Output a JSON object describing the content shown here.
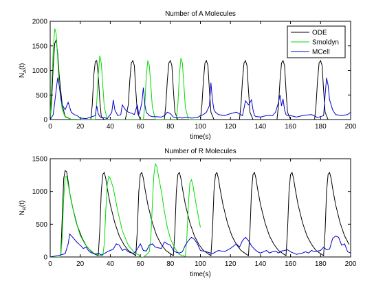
{
  "chart_data": [
    {
      "type": "line",
      "title": "Number of A Molecules",
      "xlabel": "time(s)",
      "ylabel_main": "N",
      "ylabel_sub": "A",
      "ylabel_tail": "(t)",
      "xlim": [
        0,
        200
      ],
      "ylim": [
        0,
        2000
      ],
      "xticks": [
        0,
        20,
        40,
        60,
        80,
        100,
        120,
        140,
        160,
        180,
        200
      ],
      "yticks": [
        0,
        500,
        1000,
        1500,
        2000
      ],
      "grid": false,
      "legend_position": "top-right",
      "legend": [
        "ODE",
        "Smoldyn",
        "MCell"
      ],
      "series": [
        {
          "name": "ODE",
          "color": "#000000",
          "x": [
            0,
            1,
            2,
            3,
            4,
            5,
            6,
            8,
            10,
            14,
            20,
            27,
            28,
            29,
            30,
            31,
            32,
            33,
            34,
            36,
            40,
            50,
            52,
            53,
            54,
            55,
            56,
            57,
            58,
            60,
            70,
            76,
            77,
            78,
            79,
            80,
            81,
            82,
            83,
            85,
            95,
            100,
            101,
            102,
            103,
            104,
            105,
            106,
            107,
            109,
            120,
            126,
            127,
            128,
            129,
            130,
            131,
            132,
            133,
            135,
            145,
            151,
            152,
            153,
            154,
            155,
            156,
            157,
            158,
            160,
            170,
            176,
            177,
            178,
            179,
            180,
            181,
            182,
            183,
            185,
            200
          ],
          "y": [
            0,
            400,
            1100,
            1550,
            1620,
            1350,
            900,
            300,
            60,
            5,
            0,
            0,
            300,
            900,
            1180,
            1200,
            900,
            400,
            60,
            0,
            0,
            0,
            300,
            800,
            1150,
            1200,
            1100,
            600,
            150,
            0,
            0,
            0,
            300,
            800,
            1150,
            1200,
            1100,
            600,
            150,
            0,
            0,
            0,
            300,
            800,
            1150,
            1200,
            1100,
            600,
            150,
            0,
            0,
            0,
            300,
            800,
            1150,
            1200,
            1100,
            600,
            150,
            0,
            0,
            0,
            300,
            800,
            1150,
            1200,
            1100,
            600,
            150,
            0,
            0,
            0,
            300,
            800,
            1150,
            1200,
            1100,
            600,
            150,
            0,
            0
          ]
        },
        {
          "name": "Smoldyn",
          "color": "#00dd00",
          "x": [
            0,
            1,
            2,
            3,
            4,
            5,
            6,
            8,
            10,
            14,
            20,
            30,
            31,
            32,
            33,
            34,
            35,
            36,
            38,
            50,
            62,
            63,
            64,
            65,
            66,
            67,
            68,
            70,
            84,
            85,
            86,
            87,
            88,
            89,
            90,
            92,
            100
          ],
          "y": [
            0,
            700,
            1400,
            1850,
            1750,
            1250,
            700,
            200,
            50,
            5,
            0,
            0,
            350,
            900,
            1300,
            1150,
            700,
            250,
            0,
            0,
            0,
            300,
            900,
            1200,
            1100,
            700,
            250,
            0,
            0,
            300,
            900,
            1250,
            1150,
            700,
            250,
            0,
            0
          ]
        },
        {
          "name": "MCell",
          "color": "#0000cc",
          "x": [
            0,
            2,
            3,
            4,
            5,
            6,
            7,
            8,
            10,
            12,
            14,
            16,
            18,
            20,
            24,
            28,
            30,
            31,
            32,
            33,
            34,
            36,
            38,
            40,
            41,
            42,
            43,
            45,
            47,
            48,
            50,
            52,
            54,
            56,
            58,
            59,
            60,
            61,
            62,
            63,
            64,
            66,
            68,
            70,
            74,
            76,
            78,
            80,
            82,
            84,
            86,
            88,
            90,
            94,
            98,
            100,
            102,
            104,
            106,
            107,
            108,
            109,
            110,
            112,
            116,
            120,
            124,
            128,
            130,
            132,
            134,
            135,
            136,
            137,
            138,
            140,
            144,
            148,
            150,
            152,
            153,
            154,
            155,
            156,
            157,
            158,
            160,
            164,
            168,
            170,
            174,
            178,
            180,
            182,
            183,
            184,
            185,
            186,
            188,
            190,
            194,
            198,
            200
          ],
          "y": [
            0,
            100,
            350,
            600,
            850,
            700,
            450,
            300,
            200,
            350,
            150,
            100,
            80,
            30,
            20,
            60,
            80,
            280,
            120,
            60,
            40,
            40,
            20,
            100,
            150,
            400,
            200,
            80,
            100,
            300,
            200,
            150,
            130,
            100,
            300,
            100,
            200,
            350,
            650,
            300,
            150,
            80,
            60,
            60,
            50,
            80,
            150,
            120,
            50,
            40,
            40,
            30,
            50,
            30,
            40,
            80,
            100,
            150,
            280,
            750,
            400,
            200,
            150,
            100,
            80,
            120,
            150,
            80,
            380,
            300,
            400,
            200,
            80,
            60,
            60,
            50,
            80,
            80,
            150,
            350,
            500,
            280,
            420,
            200,
            100,
            80,
            80,
            50,
            80,
            90,
            100,
            40,
            60,
            80,
            500,
            850,
            700,
            400,
            200,
            100,
            80,
            100,
            150
          ]
        }
      ]
    },
    {
      "type": "line",
      "title": "Number of R Molecules",
      "xlabel": "time(s)",
      "ylabel_main": "N",
      "ylabel_sub": "R",
      "ylabel_tail": "(t)",
      "xlim": [
        0,
        200
      ],
      "ylim": [
        0,
        1500
      ],
      "xticks": [
        0,
        20,
        40,
        60,
        80,
        100,
        120,
        140,
        160,
        180,
        200
      ],
      "yticks": [
        0,
        500,
        1000,
        1500
      ],
      "grid": false,
      "series": [
        {
          "name": "ODE",
          "color": "#000000",
          "x": [
            0,
            7,
            8,
            9,
            10,
            11,
            12,
            13,
            15,
            18,
            21,
            24,
            27,
            30,
            32,
            33,
            34,
            35,
            36,
            37,
            38,
            40,
            43,
            46,
            49,
            52,
            55,
            57,
            58,
            59,
            60,
            61,
            62,
            63,
            65,
            68,
            71,
            74,
            77,
            80,
            82,
            83,
            84,
            85,
            86,
            87,
            88,
            90,
            93,
            96,
            99,
            102,
            105,
            107,
            108,
            109,
            110,
            111,
            112,
            113,
            115,
            118,
            121,
            124,
            127,
            130,
            132,
            133,
            134,
            135,
            136,
            137,
            138,
            140,
            143,
            146,
            149,
            152,
            155,
            157,
            158,
            159,
            160,
            161,
            162,
            163,
            165,
            168,
            171,
            174,
            177,
            180,
            182,
            183,
            184,
            185,
            186,
            187,
            188,
            190,
            193,
            196,
            199
          ],
          "y": [
            0,
            0,
            600,
            1200,
            1320,
            1300,
            1150,
            980,
            750,
            480,
            300,
            170,
            90,
            40,
            20,
            400,
            1000,
            1260,
            1290,
            1200,
            1050,
            800,
            520,
            320,
            190,
            100,
            50,
            20,
            400,
            1000,
            1260,
            1290,
            1200,
            1050,
            800,
            520,
            320,
            190,
            100,
            50,
            20,
            400,
            1000,
            1260,
            1290,
            1200,
            1050,
            800,
            520,
            320,
            190,
            100,
            50,
            20,
            400,
            1000,
            1260,
            1290,
            1200,
            1050,
            800,
            520,
            320,
            190,
            100,
            50,
            20,
            400,
            1000,
            1260,
            1290,
            1200,
            1050,
            800,
            520,
            320,
            190,
            100,
            50,
            20,
            400,
            1000,
            1260,
            1290,
            1200,
            1050,
            800,
            520,
            320,
            190,
            100,
            50,
            20,
            400,
            1000,
            1260,
            1290,
            1200,
            1050,
            800,
            520,
            320,
            190
          ]
        },
        {
          "name": "Smoldyn",
          "color": "#00dd00",
          "x": [
            0,
            7,
            8,
            9,
            10,
            11,
            12,
            14,
            17,
            20,
            23,
            26,
            29,
            32,
            35,
            36,
            37,
            38,
            39,
            40,
            42,
            45,
            48,
            52,
            56,
            59,
            60,
            62,
            64,
            66,
            67,
            68,
            69,
            70,
            71,
            72,
            74,
            76,
            78,
            80,
            82,
            84,
            86,
            88,
            90,
            91,
            92,
            93,
            94,
            95,
            96,
            98,
            100
          ],
          "y": [
            0,
            0,
            300,
            900,
            1220,
            1230,
            1100,
            850,
            550,
            330,
            200,
            120,
            60,
            30,
            20,
            200,
            700,
            1100,
            1230,
            1200,
            1050,
            700,
            400,
            180,
            70,
            30,
            0,
            0,
            30,
            80,
            300,
            800,
            1250,
            1420,
            1380,
            1250,
            1000,
            700,
            450,
            280,
            180,
            100,
            40,
            20,
            10,
            300,
            800,
            1130,
            1180,
            1100,
            950,
            700,
            450
          ]
        },
        {
          "name": "MCell",
          "color": "#0000cc",
          "x": [
            0,
            5,
            10,
            12,
            13,
            15,
            18,
            20,
            22,
            24,
            26,
            28,
            30,
            32,
            34,
            36,
            38,
            40,
            42,
            44,
            46,
            48,
            50,
            52,
            54,
            56,
            58,
            60,
            62,
            64,
            66,
            68,
            70,
            72,
            74,
            76,
            78,
            80,
            82,
            84,
            86,
            88,
            90,
            92,
            94,
            96,
            98,
            100,
            104,
            108,
            112,
            116,
            120,
            124,
            126,
            128,
            130,
            132,
            134,
            136,
            138,
            140,
            142,
            144,
            146,
            148,
            150,
            152,
            154,
            156,
            158,
            160,
            162,
            164,
            166,
            168,
            170,
            172,
            174,
            176,
            178,
            180,
            182,
            184,
            186,
            188,
            190,
            192,
            194,
            196,
            198,
            200
          ],
          "y": [
            0,
            20,
            50,
            200,
            350,
            300,
            220,
            180,
            130,
            150,
            80,
            60,
            40,
            60,
            30,
            50,
            80,
            100,
            120,
            200,
            180,
            100,
            120,
            80,
            60,
            60,
            120,
            200,
            100,
            90,
            180,
            200,
            150,
            140,
            130,
            230,
            200,
            180,
            100,
            70,
            60,
            80,
            180,
            250,
            300,
            270,
            200,
            100,
            80,
            50,
            100,
            80,
            130,
            200,
            150,
            250,
            300,
            250,
            170,
            120,
            80,
            60,
            80,
            100,
            60,
            80,
            90,
            60,
            90,
            100,
            110,
            80,
            60,
            40,
            50,
            60,
            80,
            60,
            100,
            80,
            90,
            100,
            150,
            110,
            120,
            280,
            320,
            300,
            180,
            200,
            80,
            60
          ]
        }
      ]
    }
  ]
}
